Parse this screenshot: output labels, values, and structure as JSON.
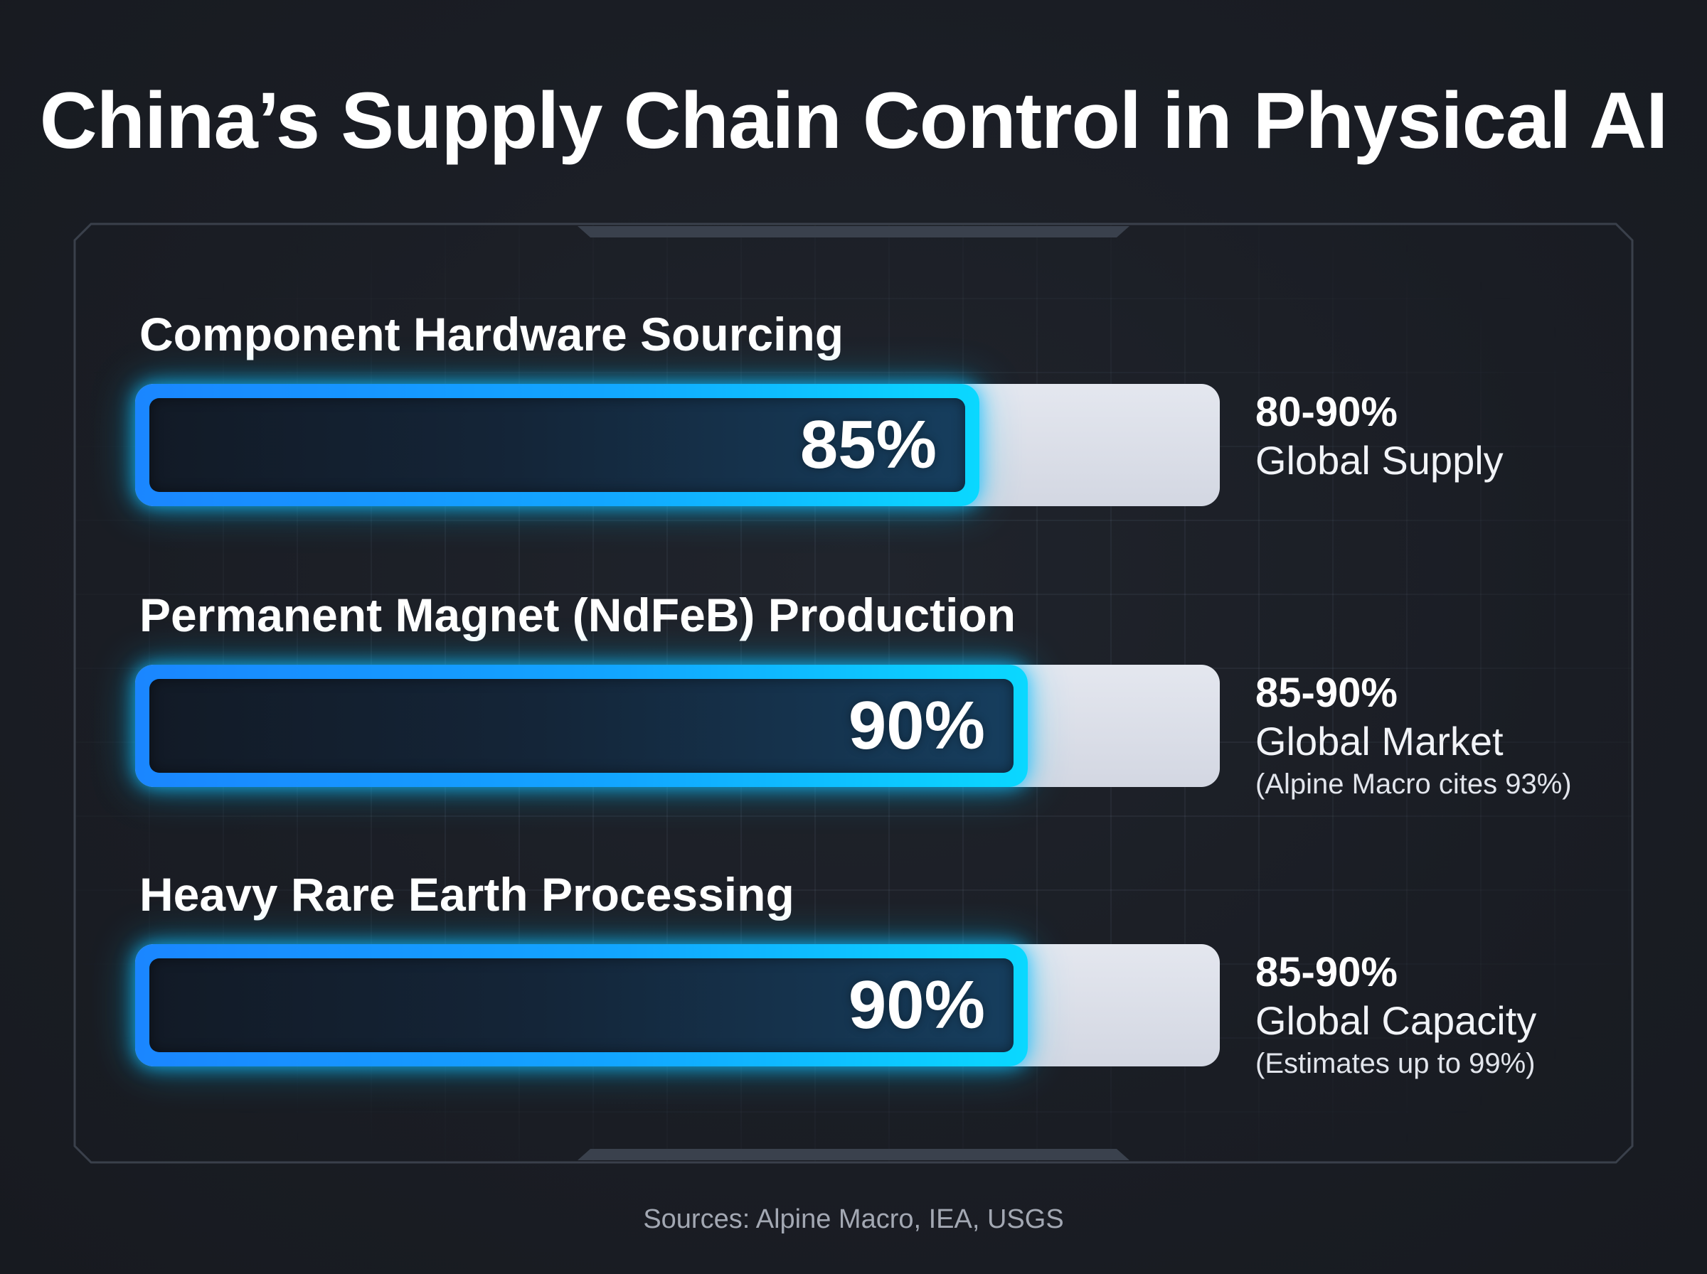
{
  "title": "China’s Supply Chain Control in Physical AI",
  "sources": "Sources: Alpine Macro, IEA, USGS",
  "colors": {
    "background": "#1a1d24",
    "fill_start": "#1a86ff",
    "fill_end": "#0ad8ff",
    "track": "#dde0e9",
    "text": "#ffffff",
    "muted": "#a3a8b3"
  },
  "chart_data": {
    "type": "bar",
    "orientation": "horizontal",
    "xlim": [
      0,
      100
    ],
    "categories": [
      "Component Hardware Sourcing",
      "Permanent Magnet (NdFeB) Production",
      "Heavy Rare Earth Processing"
    ],
    "values": [
      85,
      90,
      90
    ],
    "value_labels": [
      "85%",
      "90%",
      "90%"
    ],
    "annotations": [
      {
        "range": "80-90%",
        "description": "Global Supply",
        "note": ""
      },
      {
        "range": "85-90%",
        "description": "Global Market",
        "note": "(Alpine Macro cites 93%)"
      },
      {
        "range": "85-90%",
        "description": "Global Capacity",
        "note": "(Estimates up to 99%)"
      }
    ]
  }
}
